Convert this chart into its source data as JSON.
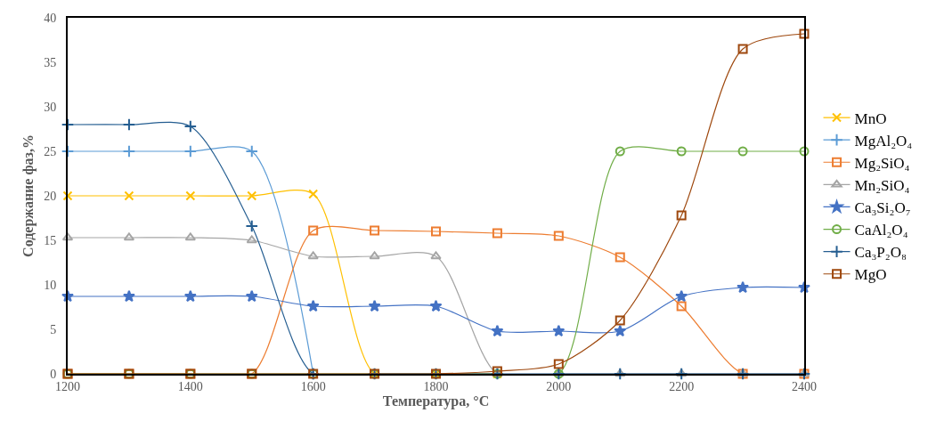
{
  "chart_data": {
    "type": "line",
    "xlabel": "Температура, °C",
    "ylabel": "Содержание фаз,%",
    "x": [
      1200,
      1300,
      1400,
      1500,
      1600,
      1700,
      1800,
      1900,
      2000,
      2100,
      2200,
      2300,
      2400
    ],
    "xlim": [
      1200,
      2400
    ],
    "xticks": [
      1200,
      1400,
      1600,
      1800,
      2000,
      2200,
      2400
    ],
    "ylim": [
      0,
      40
    ],
    "yticks": [
      0,
      5,
      10,
      15,
      20,
      25,
      30,
      35,
      40
    ],
    "grid": false,
    "legend": "right",
    "line_style": "solid",
    "series": [
      {
        "name": "MnO",
        "color": "#ffc000",
        "marker": "x",
        "values": [
          20,
          20,
          20,
          20,
          20.2,
          0,
          0,
          0,
          null,
          null,
          null,
          null,
          null
        ]
      },
      {
        "name": "MgAl₂O₄",
        "color": "#5b9bd5",
        "marker": "cross",
        "values": [
          25,
          25,
          25,
          25,
          0,
          null,
          null,
          null,
          null,
          null,
          null,
          null,
          null
        ]
      },
      {
        "name": "Mg₂SiO₄",
        "color": "#ed7d31",
        "marker": "square",
        "values": [
          0,
          0,
          0,
          0,
          16.1,
          16.1,
          16,
          15.8,
          15.5,
          13.1,
          7.6,
          0,
          0
        ]
      },
      {
        "name": "Mn₂SiO₄",
        "color": "#a5a5a5",
        "marker": "triangle",
        "values": [
          15.3,
          15.3,
          15.3,
          15,
          13.2,
          13.2,
          13.2,
          0,
          0,
          0,
          0,
          0,
          0
        ]
      },
      {
        "name": "Ca₃Si₂O₇",
        "color": "#4472c4",
        "marker": "star",
        "values": [
          8.7,
          8.7,
          8.7,
          8.7,
          7.6,
          7.6,
          7.6,
          4.8,
          4.8,
          4.8,
          8.7,
          9.7,
          9.7
        ]
      },
      {
        "name": "CaAl₂O₄",
        "color": "#70ad47",
        "marker": "circle",
        "values": [
          0,
          0,
          0,
          0,
          0,
          0,
          0,
          0,
          0,
          25,
          25,
          25,
          25
        ]
      },
      {
        "name": "Ca₃P₂O₈",
        "color": "#255e91",
        "marker": "cross",
        "values": [
          28,
          28,
          27.8,
          16.6,
          0,
          0,
          0,
          0,
          0,
          0,
          0,
          0,
          0
        ]
      },
      {
        "name": "MgO",
        "color": "#9e480e",
        "marker": "square",
        "values": [
          0,
          0,
          0,
          0,
          0,
          0,
          0,
          0.3,
          1.1,
          6,
          17.8,
          36.5,
          38.2
        ]
      }
    ]
  }
}
